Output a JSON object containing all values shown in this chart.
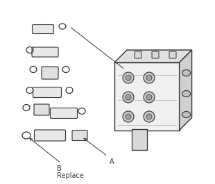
{
  "fig_width": 3.1,
  "fig_height": 2.65,
  "dpi": 100,
  "bg_color": "#ffffff",
  "label_A": "A",
  "label_B": "B",
  "label_replace": "Replace.",
  "label_fontsize": 7,
  "line_color": "#333333",
  "component_color": "#cccccc",
  "component_edge": "#444444",
  "arrow_color": "#333333"
}
